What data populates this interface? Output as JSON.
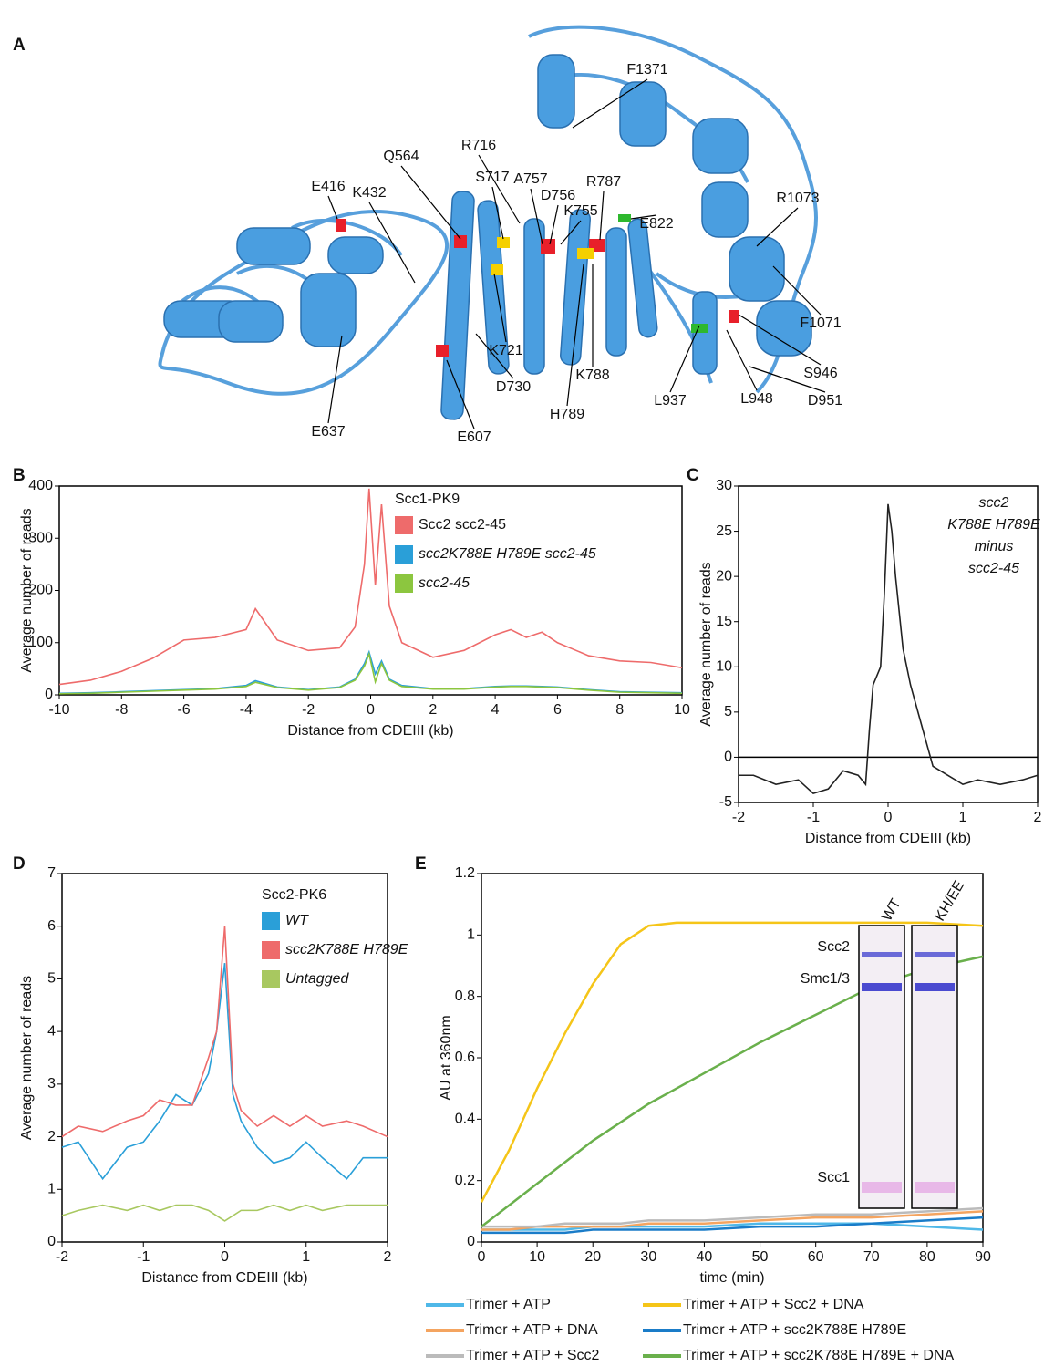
{
  "structure": {
    "panel": "A",
    "residues": [
      "E416",
      "K432",
      "Q564",
      "S717",
      "R716",
      "A757",
      "D756",
      "K755",
      "R787",
      "F1371",
      "E822",
      "R1073",
      "F1071",
      "S946",
      "D951",
      "L948",
      "L937",
      "K788",
      "H789",
      "D730",
      "K721",
      "E607",
      "E637"
    ]
  },
  "chart_data": [
    {
      "type": "line",
      "panel": "B",
      "x_label": "Distance from CDEIII (kb)",
      "y_label": "Average number of reads",
      "legend_title": "Scc1-PK9",
      "x": [
        -10,
        -9,
        -8,
        -7,
        -6,
        -5,
        -4,
        -3.7,
        -3,
        -2,
        -1,
        -0.5,
        -0.2,
        -0.05,
        0.15,
        0.35,
        0.6,
        1,
        2,
        3,
        4,
        4.5,
        5,
        5.5,
        6,
        7,
        8,
        9,
        10
      ],
      "series": [
        {
          "name": "Scc2 scc2-45",
          "color": "#ee6b6b",
          "values": [
            20,
            28,
            45,
            70,
            105,
            110,
            125,
            165,
            105,
            85,
            90,
            130,
            250,
            395,
            210,
            365,
            170,
            100,
            72,
            85,
            115,
            125,
            110,
            120,
            100,
            75,
            65,
            62,
            52
          ]
        },
        {
          "name": "scc2K788E H789E scc2-45",
          "color": "#2a9fd8",
          "values": [
            3,
            4,
            6,
            8,
            10,
            12,
            18,
            27,
            15,
            10,
            15,
            30,
            60,
            82,
            40,
            65,
            30,
            18,
            12,
            12,
            16,
            17,
            17,
            16,
            15,
            10,
            6,
            5,
            4
          ]
        },
        {
          "name": "scc2-45",
          "color": "#8cc63f",
          "values": [
            2,
            3,
            5,
            7,
            9,
            11,
            16,
            24,
            14,
            9,
            14,
            28,
            55,
            78,
            25,
            60,
            28,
            16,
            11,
            11,
            15,
            16,
            16,
            15,
            14,
            9,
            5,
            4,
            3
          ]
        }
      ],
      "xlim": [
        -10,
        10
      ],
      "xticks": [
        -10,
        -8,
        -6,
        -4,
        -2,
        0,
        2,
        4,
        6,
        8,
        10
      ],
      "ylim": [
        0,
        400
      ],
      "yticks": [
        0,
        100,
        200,
        300,
        400
      ]
    },
    {
      "type": "line",
      "panel": "C",
      "x_label": "Distance from CDEIII (kb)",
      "y_label": "Average number of reads",
      "annotation": [
        "scc2",
        "K788E H789E",
        "minus",
        "scc2-45"
      ],
      "x": [
        -2,
        -1.8,
        -1.5,
        -1.2,
        -1,
        -0.8,
        -0.6,
        -0.4,
        -0.3,
        -0.25,
        -0.2,
        -0.1,
        -0.05,
        0,
        0.05,
        0.1,
        0.2,
        0.3,
        0.4,
        0.5,
        0.6,
        0.8,
        1,
        1.2,
        1.5,
        1.8,
        2
      ],
      "series": [
        {
          "color": "#222222",
          "values": [
            -2,
            -2,
            -3,
            -2.5,
            -4,
            -3.5,
            -1.5,
            -2,
            -3,
            3,
            8,
            10,
            18,
            28,
            25,
            20,
            12,
            8,
            5,
            2,
            -1,
            -2,
            -3,
            -2.5,
            -3,
            -2.5,
            -2
          ]
        }
      ],
      "xlim": [
        -2,
        2
      ],
      "xticks": [
        -2,
        -1,
        0,
        1,
        2
      ],
      "ylim": [
        -5,
        30
      ],
      "yticks": [
        -5,
        0,
        5,
        10,
        15,
        20,
        25,
        30
      ]
    },
    {
      "type": "line",
      "panel": "D",
      "x_label": "Distance from CDEIII (kb)",
      "y_label": "Average number of reads",
      "legend_title": "Scc2-PK6",
      "x": [
        -2,
        -1.8,
        -1.5,
        -1.2,
        -1,
        -0.8,
        -0.6,
        -0.4,
        -0.2,
        -0.1,
        0,
        0.1,
        0.2,
        0.4,
        0.6,
        0.8,
        1,
        1.2,
        1.5,
        1.7,
        2
      ],
      "series": [
        {
          "name": "WT",
          "color": "#2a9fd8",
          "values": [
            1.8,
            1.9,
            1.2,
            1.8,
            1.9,
            2.3,
            2.8,
            2.6,
            3.2,
            4.0,
            5.3,
            2.8,
            2.3,
            1.8,
            1.5,
            1.6,
            1.9,
            1.6,
            1.2,
            1.6,
            1.6
          ]
        },
        {
          "name": "scc2K788E H789E",
          "color": "#ee6b6b",
          "values": [
            2.0,
            2.2,
            2.1,
            2.3,
            2.4,
            2.7,
            2.6,
            2.6,
            3.5,
            4.0,
            6.0,
            3.0,
            2.5,
            2.2,
            2.4,
            2.2,
            2.4,
            2.2,
            2.3,
            2.2,
            2.0
          ]
        },
        {
          "name": "Untagged",
          "color": "#a8c860",
          "values": [
            0.5,
            0.6,
            0.7,
            0.6,
            0.7,
            0.6,
            0.7,
            0.7,
            0.6,
            0.5,
            0.4,
            0.5,
            0.6,
            0.6,
            0.7,
            0.6,
            0.7,
            0.6,
            0.7,
            0.7,
            0.7
          ]
        }
      ],
      "xlim": [
        -2,
        2
      ],
      "xticks": [
        -2,
        -1,
        0,
        1,
        2
      ],
      "ylim": [
        0,
        7
      ],
      "yticks": [
        0,
        1,
        2,
        3,
        4,
        5,
        6,
        7
      ]
    },
    {
      "type": "line",
      "panel": "E",
      "x_label": "time (min)",
      "y_label": "AU at 360nm",
      "x": [
        0,
        5,
        10,
        15,
        20,
        25,
        30,
        35,
        40,
        50,
        60,
        70,
        80,
        90
      ],
      "series": [
        {
          "name": "Trimer + ATP",
          "color": "#4fb8e8",
          "values": [
            0.04,
            0.04,
            0.04,
            0.04,
            0.05,
            0.05,
            0.05,
            0.05,
            0.05,
            0.06,
            0.06,
            0.06,
            0.05,
            0.04
          ]
        },
        {
          "name": "Trimer + ATP + DNA",
          "color": "#f4a460",
          "values": [
            0.04,
            0.04,
            0.05,
            0.05,
            0.05,
            0.05,
            0.06,
            0.06,
            0.06,
            0.07,
            0.08,
            0.08,
            0.09,
            0.1
          ]
        },
        {
          "name": "Trimer + ATP + Scc2",
          "color": "#bbbbbb",
          "values": [
            0.05,
            0.05,
            0.05,
            0.06,
            0.06,
            0.06,
            0.07,
            0.07,
            0.07,
            0.08,
            0.09,
            0.09,
            0.1,
            0.11
          ]
        },
        {
          "name": "Trimer + ATP + Scc2 + DNA",
          "color": "#f5c518",
          "values": [
            0.13,
            0.3,
            0.5,
            0.68,
            0.84,
            0.97,
            1.03,
            1.04,
            1.04,
            1.04,
            1.04,
            1.04,
            1.04,
            1.03
          ]
        },
        {
          "name": "Trimer + ATP + scc2K788E H789E",
          "color": "#1a7cc8",
          "values": [
            0.03,
            0.03,
            0.03,
            0.03,
            0.04,
            0.04,
            0.04,
            0.04,
            0.04,
            0.05,
            0.05,
            0.06,
            0.07,
            0.08
          ]
        },
        {
          "name": "Trimer + ATP + scc2K788E H789E + DNA",
          "color": "#6ab04c",
          "values": [
            0.05,
            0.12,
            0.19,
            0.26,
            0.33,
            0.39,
            0.45,
            0.5,
            0.55,
            0.65,
            0.74,
            0.83,
            0.89,
            0.93
          ]
        }
      ],
      "xlim": [
        0,
        90
      ],
      "xticks": [
        0,
        10,
        20,
        30,
        40,
        50,
        60,
        70,
        80,
        90
      ],
      "ylim": [
        0,
        1.2
      ],
      "yticks": [
        0,
        0.2,
        0.4,
        0.6,
        0.8,
        1,
        1.2
      ],
      "gel": {
        "lanes": [
          "WT",
          "KH/EE"
        ],
        "bands": [
          "Scc2",
          "Smc1/3",
          "Scc1"
        ]
      }
    }
  ]
}
